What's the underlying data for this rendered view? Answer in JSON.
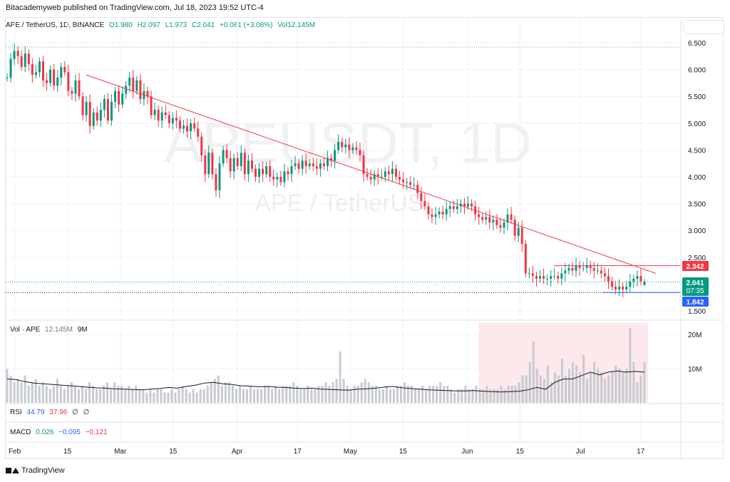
{
  "header": {
    "publisher_line": "Bitacademyweb published on TradingView.com, Jul 18, 2023 19:52 UTC-4"
  },
  "symbol_bar": {
    "pair": "APE / TetherUS, 1D, BINANCE",
    "open": "O1.980",
    "high": "H2.097",
    "low": "L1.973",
    "close": "C2.041",
    "change": "+0.061 (+3.08%)",
    "volume": "Vol12.145M"
  },
  "watermark": {
    "main": "APEUSDT, 1D",
    "sub": "APE / TetherUS"
  },
  "colors": {
    "up": "#089981",
    "down": "#f23645",
    "trendline": "#f23645",
    "volume": "#c8cad3",
    "volume_ma": "#131722",
    "highlight_zone": "#fce4e6"
  },
  "price_badges": {
    "resistance": "2.342",
    "last": "2.041",
    "countdown": "07:35",
    "support": "1.842"
  },
  "volume_pane": {
    "label": "Vol · APE",
    "value": "12.145M",
    "ma": "9M"
  },
  "rsi_pane": {
    "label": "RSI",
    "v1": "44.79",
    "v2": "37.96",
    "v3": "∅",
    "v4": "∅"
  },
  "macd_pane": {
    "label": "MACD",
    "v1": "0.026",
    "v2": "−0.095",
    "v3": "−0.121"
  },
  "footer": {
    "brand": "TradingView"
  },
  "chart_data": [
    {
      "type": "candlestick",
      "title": "APEUSDT, 1D",
      "x_tick_labels": [
        "Feb",
        "15",
        "Mar",
        "15",
        "Apr",
        "17",
        "May",
        "15",
        "Jun",
        "15",
        "Jul",
        "17"
      ],
      "y_tick_labels": [
        "6.500",
        "6.000",
        "5.500",
        "5.000",
        "4.500",
        "4.000",
        "3.500",
        "3.000",
        "2.500",
        "2.000",
        "1.500"
      ],
      "ylim": [
        1.5,
        6.5
      ],
      "date_range": [
        "2023-01-30",
        "2023-07-18"
      ],
      "last_ohlc": {
        "open": 1.98,
        "high": 2.097,
        "low": 1.973,
        "close": 2.041
      },
      "closes": [
        5.85,
        6.2,
        6.35,
        6.25,
        6.05,
        6.3,
        6.1,
        5.9,
        5.95,
        6.15,
        5.8,
        5.75,
        6.0,
        5.7,
        5.85,
        6.05,
        5.95,
        5.6,
        5.55,
        5.8,
        5.5,
        5.15,
        5.4,
        4.95,
        5.2,
        5.05,
        5.25,
        5.45,
        5.05,
        5.4,
        5.6,
        5.35,
        5.55,
        5.7,
        5.85,
        5.6,
        5.8,
        5.45,
        5.6,
        5.5,
        5.15,
        5.25,
        5.05,
        5.2,
        5.15,
        5.0,
        5.1,
        5.05,
        4.9,
        4.95,
        4.85,
        5.0,
        4.9,
        4.75,
        4.4,
        4.05,
        4.45,
        4.05,
        3.75,
        4.25,
        4.5,
        4.35,
        4.1,
        4.35,
        4.2,
        4.45,
        4.05,
        4.3,
        4.15,
        4.0,
        4.15,
        4.05,
        4.2,
        4.0,
        3.95,
        4.0,
        3.9,
        4.1,
        4.05,
        4.2,
        4.25,
        4.15,
        4.3,
        4.2,
        4.25,
        4.2,
        4.15,
        4.25,
        4.2,
        4.35,
        4.3,
        4.5,
        4.65,
        4.55,
        4.6,
        4.5,
        4.55,
        4.5,
        4.4,
        4.05,
        4.0,
        3.95,
        4.05,
        4.0,
        4.0,
        4.1,
        4.05,
        4.15,
        4.0,
        3.95,
        3.9,
        3.9,
        3.85,
        3.85,
        3.7,
        3.55,
        3.45,
        3.3,
        3.25,
        3.3,
        3.35,
        3.3,
        3.4,
        3.45,
        3.4,
        3.45,
        3.5,
        3.45,
        3.5,
        3.45,
        3.3,
        3.25,
        3.2,
        3.25,
        3.15,
        3.2,
        3.1,
        3.05,
        3.15,
        3.3,
        3.2,
        2.9,
        3.05,
        2.75,
        2.2,
        2.2,
        2.15,
        2.1,
        2.15,
        2.1,
        2.1,
        2.15,
        2.15,
        2.1,
        2.2,
        2.25,
        2.3,
        2.25,
        2.35,
        2.3,
        2.3,
        2.35,
        2.3,
        2.25,
        2.25,
        2.2,
        2.15,
        2.05,
        1.95,
        1.9,
        1.95,
        1.9,
        1.95,
        2.05,
        2.1,
        2.15,
        2.05,
        2.041
      ],
      "trendline": {
        "from": [
          "2023-02-20",
          5.9
        ],
        "to": [
          "2023-07-21",
          2.2
        ]
      },
      "horizontal_levels": [
        6.42,
        2.342,
        2.041,
        1.842
      ]
    },
    {
      "type": "bar",
      "title": "Vol · APE",
      "y_tick_labels": [
        "20M",
        "10M"
      ],
      "ylim": [
        0,
        24
      ],
      "unit": "M",
      "values": [
        10,
        8,
        6,
        7,
        6,
        8,
        5,
        6,
        7,
        5,
        6,
        5,
        4,
        5,
        7,
        5,
        4,
        5,
        6,
        5,
        4,
        5,
        4,
        6,
        5,
        4,
        4,
        5,
        6,
        4,
        6,
        5,
        5,
        4,
        5,
        4,
        5,
        4,
        4,
        3,
        4,
        3,
        4,
        4,
        3,
        3,
        4,
        3,
        4,
        5,
        4,
        3,
        4,
        3,
        4,
        4,
        5,
        6,
        7,
        8,
        5,
        6,
        6,
        5,
        4,
        5,
        4,
        4,
        5,
        4,
        4,
        4,
        5,
        5,
        4,
        5,
        4,
        5,
        5,
        5,
        6,
        5,
        4,
        4,
        5,
        4,
        4,
        5,
        5,
        6,
        5,
        6,
        7,
        15,
        7,
        5,
        4,
        5,
        5,
        6,
        7,
        6,
        5,
        5,
        4,
        4,
        5,
        4,
        4,
        5,
        5,
        6,
        5,
        5,
        4,
        4,
        5,
        4,
        5,
        5,
        5,
        6,
        5,
        5,
        4,
        3,
        4,
        4,
        5,
        4,
        4,
        5,
        4,
        4,
        5,
        4,
        4,
        4,
        5,
        4,
        5,
        5,
        5,
        6,
        8,
        8,
        12,
        18,
        10,
        8,
        7,
        11,
        6,
        9,
        8,
        13,
        8,
        10,
        12,
        11,
        9,
        14,
        7,
        9,
        12,
        10,
        9,
        7,
        8,
        9,
        11,
        10,
        9,
        10,
        22,
        12,
        6,
        8,
        12
      ],
      "ma_values": [
        7.0,
        6.8,
        6.2,
        5.8,
        5.6,
        5.4,
        5.2,
        5.0,
        4.8,
        4.6,
        4.4,
        4.3,
        4.1,
        4.0,
        3.9,
        3.8,
        4.0,
        4.2,
        4.5,
        4.3,
        4.8,
        5.2,
        5.8,
        6.0,
        5.6,
        5.4,
        5.0,
        4.9,
        4.7,
        4.8,
        4.6,
        4.5,
        4.3,
        4.2,
        4.3,
        4.0,
        3.9,
        3.8,
        3.7,
        4.0,
        4.1,
        4.3,
        4.6,
        4.8,
        4.4,
        4.2,
        4.0,
        3.8,
        3.7,
        3.6,
        3.5,
        3.5,
        3.6,
        3.4,
        3.3,
        3.2,
        3.3,
        3.4,
        3.8,
        4.5,
        4.0,
        6.0,
        7.0,
        7.0,
        8.0,
        9.0,
        8.2,
        9.0,
        9.3,
        9.0,
        9.2,
        9.0
      ]
    }
  ]
}
